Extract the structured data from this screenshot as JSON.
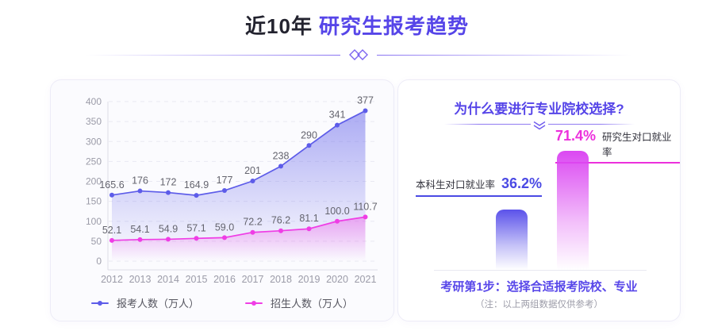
{
  "header": {
    "title_prefix": "近10年",
    "title_highlight": "研究生报考趋势",
    "accent_color": "#5645E8"
  },
  "chart_data": {
    "type": "line",
    "categories": [
      "2012",
      "2013",
      "2014",
      "2015",
      "2016",
      "2017",
      "2018",
      "2019",
      "2020",
      "2021"
    ],
    "series": [
      {
        "name": "报考人数（万人）",
        "color": "#5D5CE9",
        "values": [
          165.6,
          176,
          172,
          164.9,
          177,
          201,
          238,
          290,
          341,
          377
        ],
        "labels": [
          "165.6",
          "176",
          "172",
          "164.9",
          "177",
          "201",
          "238",
          "290",
          "341",
          "377"
        ],
        "area_opacity": 0.5
      },
      {
        "name": "招生人数（万人）",
        "color": "#EF3DE5",
        "values": [
          52.1,
          54.1,
          54.9,
          57.1,
          59.0,
          72.2,
          76.2,
          81.1,
          100.0,
          110.7
        ],
        "labels": [
          "52.1",
          "54.1",
          "54.9",
          "57.1",
          "59.0",
          "72.2",
          "76.2",
          "81.1",
          "100.0",
          "110.7"
        ],
        "area_opacity": 0.38
      }
    ],
    "ylim": [
      0,
      400
    ],
    "ytick_step": 50,
    "grid": "horizontal-dashed",
    "legend_position": "bottom"
  },
  "right_panel": {
    "title": "为什么要进行专业院校选择?",
    "bars": [
      {
        "label": "本科生对口就业率",
        "value": 36.2,
        "value_text": "36.2%",
        "bar_color": "#5B52EA",
        "text_color": "#4B4AE4"
      },
      {
        "label": "研究生对口就业率",
        "value": 71.4,
        "value_text": "71.4%",
        "bar_color": "#DB48F2",
        "text_color": "#EC30DC"
      }
    ],
    "footer": "考研第1步：选择合适报考院校、专业",
    "note": "（注：以上两组数据仅供参考）"
  }
}
